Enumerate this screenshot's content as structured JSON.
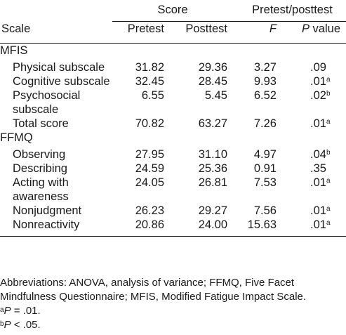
{
  "table": {
    "group_headers": {
      "score": "Score",
      "pretest_posttest": "Pretest/posttest"
    },
    "column_headers": {
      "scale": "Scale",
      "pretest": "Pretest",
      "posttest": "Posttest",
      "f": "F",
      "p_value_p": "P",
      "p_value_rest": " value"
    },
    "sections": [
      {
        "name": "MFIS",
        "rows": [
          {
            "label_1": "Physical subscale",
            "label_2": "",
            "pretest": "31.82",
            "posttest": "29.36",
            "f": "3.27",
            "p": ".09",
            "sup": ""
          },
          {
            "label_1": "Cognitive subscale",
            "label_2": "",
            "pretest": "32.45",
            "posttest": "28.45",
            "f": "9.93",
            "p": ".01",
            "sup": "a"
          },
          {
            "label_1": "Psychosocial",
            "label_2": "subscale",
            "pretest": "6.55",
            "posttest": "5.45",
            "f": "6.52",
            "p": ".02",
            "sup": "b"
          },
          {
            "label_1": "Total score",
            "label_2": "",
            "pretest": "70.82",
            "posttest": "63.27",
            "f": "7.26",
            "p": ".01",
            "sup": "a"
          }
        ]
      },
      {
        "name": "FFMQ",
        "rows": [
          {
            "label_1": "Observing",
            "label_2": "",
            "pretest": "27.95",
            "posttest": "31.10",
            "f": "4.97",
            "p": ".04",
            "sup": "b"
          },
          {
            "label_1": "Describing",
            "label_2": "",
            "pretest": "24.59",
            "posttest": "25.36",
            "f": "0.91",
            "p": ".35",
            "sup": ""
          },
          {
            "label_1": "Acting with",
            "label_2": "awareness",
            "pretest": "24.05",
            "posttest": "26.81",
            "f": "7.53",
            "p": ".01",
            "sup": "a"
          },
          {
            "label_1": "Nonjudgment",
            "label_2": "",
            "pretest": "26.23",
            "posttest": "29.27",
            "f": "7.56",
            "p": ".01",
            "sup": "a"
          },
          {
            "label_1": "Nonreactivity",
            "label_2": "",
            "pretest": "20.86",
            "posttest": "24.00",
            "f": "15.63",
            "p": ".01",
            "sup": "a"
          }
        ]
      }
    ]
  },
  "notes": {
    "abbrev_line_1": "Abbreviations: ANOVA, analysis of variance; FFMQ, Five Facet",
    "abbrev_line_2": "Mindfulness Questionnaire; MFIS, Modified Fatigue Impact Scale.",
    "footnote_a_mark": "a",
    "footnote_a_p": "P",
    "footnote_a_text": " = .01.",
    "footnote_b_mark": "b",
    "footnote_b_p": "P",
    "footnote_b_text": " < .05."
  }
}
